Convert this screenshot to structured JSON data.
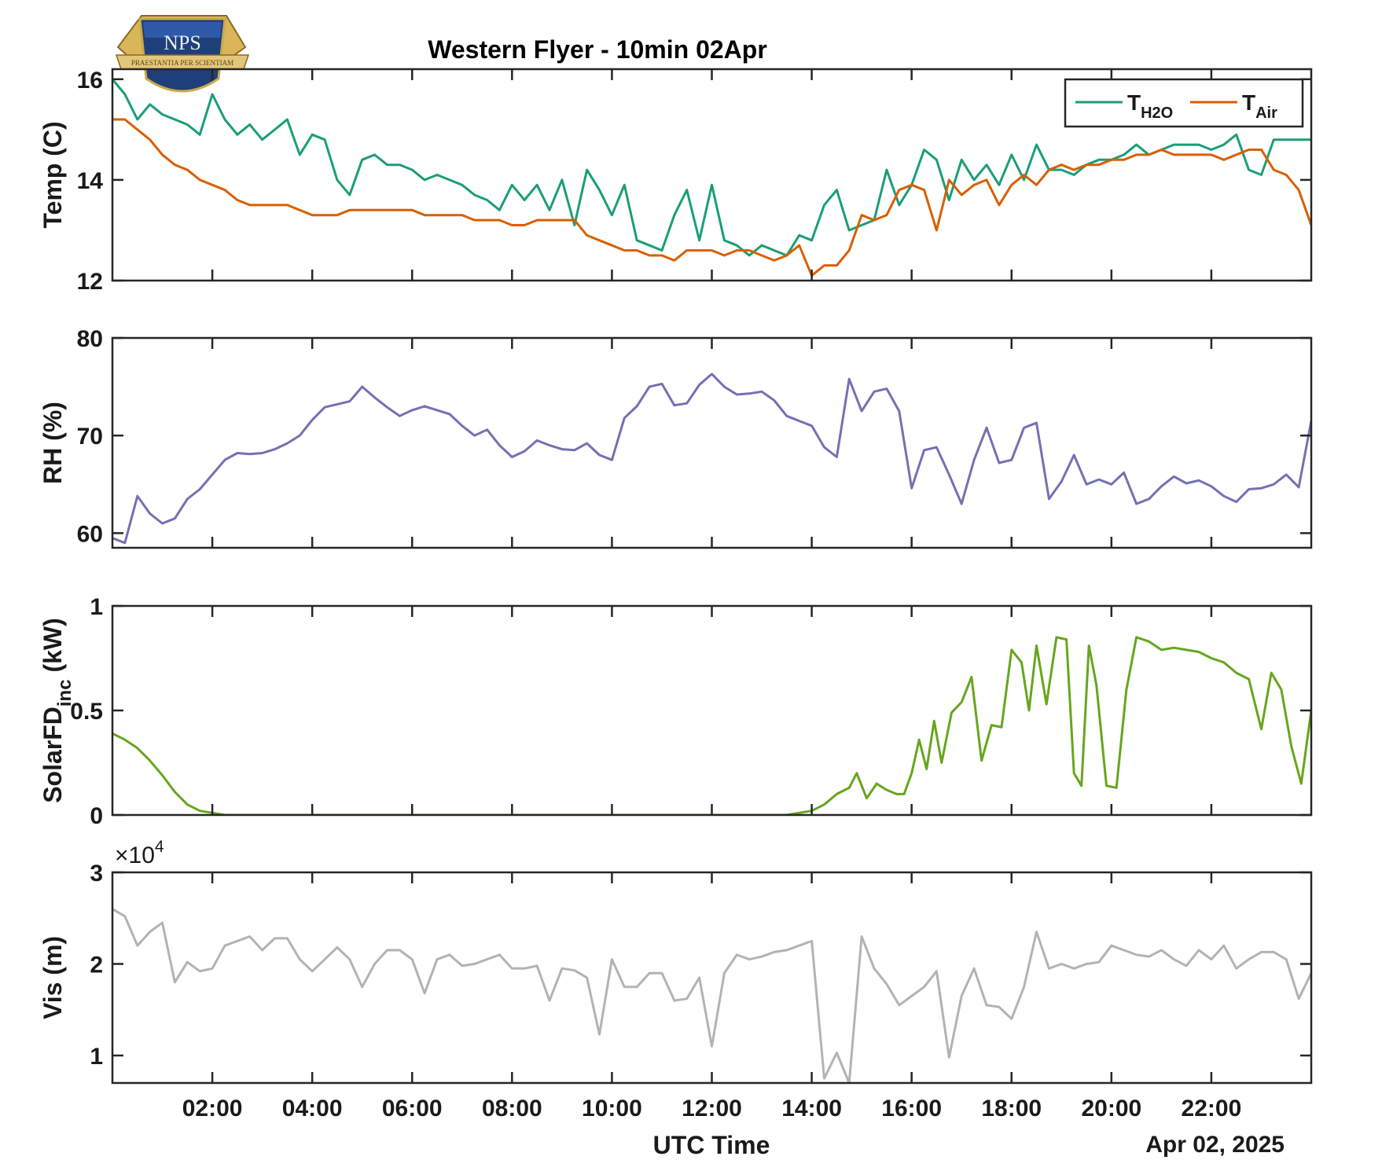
{
  "logo": {
    "text": "NPS",
    "motto": "PRAESTANTIA PER SCIENTIAM"
  },
  "title": "Western Flyer - 10min 02Apr",
  "xlabel": "UTC Time",
  "date_label": "Apr 02, 2025",
  "exponent_label": "×10",
  "exponent_power": "4",
  "colors": {
    "h2o": "#1b9e77",
    "air": "#d95f02",
    "rh": "#7570b3",
    "solar": "#66a61e",
    "vis": "#b3b3b3",
    "axis": "#262626"
  },
  "chart_data": [
    {
      "type": "line",
      "ylabel": "Temp (C)",
      "ylim": [
        12,
        16.2
      ],
      "yticks": [
        "12",
        "14",
        "16"
      ],
      "legend": {
        "placement": "top-right",
        "entries": [
          {
            "base": "T",
            "sub": "H2O"
          },
          {
            "base": "T",
            "sub": "Air"
          }
        ]
      },
      "x_hours": [
        0.0,
        0.25,
        0.5,
        0.75,
        1.0,
        1.25,
        1.5,
        1.75,
        2.0,
        2.25,
        2.5,
        2.75,
        3.0,
        3.25,
        3.5,
        3.75,
        4.0,
        4.25,
        4.5,
        4.75,
        5.0,
        5.25,
        5.5,
        5.75,
        6.0,
        6.25,
        6.5,
        6.75,
        7.0,
        7.25,
        7.5,
        7.75,
        8.0,
        8.25,
        8.5,
        8.75,
        9.0,
        9.25,
        9.5,
        9.75,
        10.0,
        10.25,
        10.5,
        10.75,
        11.0,
        11.25,
        11.5,
        11.75,
        12.0,
        12.25,
        12.5,
        12.75,
        13.0,
        13.25,
        13.5,
        13.75,
        14.0,
        14.25,
        14.5,
        14.75,
        15.0,
        15.25,
        15.5,
        15.75,
        16.0,
        16.25,
        16.5,
        16.75,
        17.0,
        17.25,
        17.5,
        17.75,
        18.0,
        18.25,
        18.5,
        18.75,
        19.0,
        19.25,
        19.5,
        19.75,
        20.0,
        20.25,
        20.5,
        20.75,
        21.0,
        21.25,
        21.5,
        21.75,
        22.0,
        22.25,
        22.5,
        22.75,
        23.0,
        23.25,
        23.5,
        23.75,
        24.0
      ],
      "series": [
        {
          "name": "H2O",
          "values": [
            16.0,
            15.7,
            15.2,
            15.5,
            15.3,
            15.2,
            15.1,
            14.9,
            15.7,
            15.2,
            14.9,
            15.1,
            14.8,
            15.0,
            15.2,
            14.5,
            14.9,
            14.8,
            14.0,
            13.7,
            14.4,
            14.5,
            14.3,
            14.3,
            14.2,
            14.0,
            14.1,
            14.0,
            13.9,
            13.7,
            13.6,
            13.4,
            13.9,
            13.6,
            13.9,
            13.4,
            14.0,
            13.1,
            14.2,
            13.8,
            13.3,
            13.9,
            12.8,
            12.7,
            12.6,
            13.3,
            13.8,
            12.8,
            13.9,
            12.8,
            12.7,
            12.5,
            12.7,
            12.6,
            12.5,
            12.9,
            12.8,
            13.5,
            13.8,
            13.0,
            13.1,
            13.2,
            14.2,
            13.5,
            13.9,
            14.6,
            14.4,
            13.6,
            14.4,
            14.0,
            14.3,
            13.9,
            14.5,
            14.0,
            14.7,
            14.2,
            14.2,
            14.1,
            14.3,
            14.4,
            14.4,
            14.5,
            14.7,
            14.5,
            14.6,
            14.7,
            14.7,
            14.7,
            14.6,
            14.7,
            14.9,
            14.2,
            14.1,
            14.8,
            14.8,
            14.8,
            14.8
          ]
        },
        {
          "name": "Air",
          "values": [
            15.2,
            15.2,
            15.0,
            14.8,
            14.5,
            14.3,
            14.2,
            14.0,
            13.9,
            13.8,
            13.6,
            13.5,
            13.5,
            13.5,
            13.5,
            13.4,
            13.3,
            13.3,
            13.3,
            13.4,
            13.4,
            13.4,
            13.4,
            13.4,
            13.4,
            13.3,
            13.3,
            13.3,
            13.3,
            13.2,
            13.2,
            13.2,
            13.1,
            13.1,
            13.2,
            13.2,
            13.2,
            13.2,
            12.9,
            12.8,
            12.7,
            12.6,
            12.6,
            12.5,
            12.5,
            12.4,
            12.6,
            12.6,
            12.6,
            12.5,
            12.6,
            12.6,
            12.5,
            12.4,
            12.5,
            12.7,
            12.1,
            12.3,
            12.3,
            12.6,
            13.3,
            13.2,
            13.3,
            13.8,
            13.9,
            13.8,
            13.0,
            14.0,
            13.7,
            13.9,
            14.0,
            13.5,
            13.9,
            14.1,
            13.9,
            14.2,
            14.3,
            14.2,
            14.3,
            14.3,
            14.4,
            14.4,
            14.5,
            14.5,
            14.6,
            14.5,
            14.5,
            14.5,
            14.5,
            14.4,
            14.5,
            14.6,
            14.6,
            14.2,
            14.1,
            13.8,
            13.1
          ]
        }
      ]
    },
    {
      "type": "line",
      "ylabel": "RH (%)",
      "ylim": [
        58.5,
        80
      ],
      "yticks": [
        "60",
        "70",
        "80"
      ],
      "x_hours": [
        0.0,
        0.25,
        0.5,
        0.75,
        1.0,
        1.25,
        1.5,
        1.75,
        2.0,
        2.25,
        2.5,
        2.75,
        3.0,
        3.25,
        3.5,
        3.75,
        4.0,
        4.25,
        4.5,
        4.75,
        5.0,
        5.25,
        5.5,
        5.75,
        6.0,
        6.25,
        6.5,
        6.75,
        7.0,
        7.25,
        7.5,
        7.75,
        8.0,
        8.25,
        8.5,
        8.75,
        9.0,
        9.25,
        9.5,
        9.75,
        10.0,
        10.25,
        10.5,
        10.75,
        11.0,
        11.25,
        11.5,
        11.75,
        12.0,
        12.25,
        12.5,
        12.75,
        13.0,
        13.25,
        13.5,
        13.75,
        14.0,
        14.25,
        14.5,
        14.75,
        15.0,
        15.25,
        15.5,
        15.75,
        16.0,
        16.25,
        16.5,
        16.75,
        17.0,
        17.25,
        17.5,
        17.75,
        18.0,
        18.25,
        18.5,
        18.75,
        19.0,
        19.25,
        19.5,
        19.75,
        20.0,
        20.25,
        20.5,
        20.75,
        21.0,
        21.25,
        21.5,
        21.75,
        22.0,
        22.25,
        22.5,
        22.75,
        23.0,
        23.25,
        23.5,
        23.75,
        24.0
      ],
      "series": [
        {
          "name": "",
          "values": [
            59.5,
            59.0,
            63.8,
            62.0,
            61.0,
            61.5,
            63.5,
            64.5,
            66.0,
            67.5,
            68.2,
            68.1,
            68.2,
            68.6,
            69.2,
            70.0,
            71.6,
            72.9,
            73.2,
            73.5,
            75.0,
            73.9,
            72.9,
            72.0,
            72.6,
            73.0,
            72.6,
            72.2,
            71.0,
            70.0,
            70.6,
            69.0,
            67.8,
            68.4,
            69.5,
            69.0,
            68.6,
            68.5,
            69.2,
            68.0,
            67.5,
            71.8,
            73.0,
            75.0,
            75.3,
            73.1,
            73.3,
            75.2,
            76.3,
            75.0,
            74.2,
            74.3,
            74.5,
            73.6,
            72.0,
            71.5,
            71.0,
            68.8,
            67.8,
            75.8,
            72.5,
            74.5,
            74.8,
            72.5,
            64.6,
            68.5,
            68.8,
            66.0,
            63.0,
            67.5,
            70.8,
            67.2,
            67.5,
            70.8,
            71.3,
            63.5,
            65.3,
            68.0,
            65.0,
            65.5,
            65.0,
            66.2,
            63.0,
            63.5,
            64.8,
            65.8,
            65.1,
            65.4,
            64.8,
            63.8,
            63.2,
            64.5,
            64.6,
            65.0,
            66.0,
            64.7,
            71.5
          ]
        }
      ]
    },
    {
      "type": "line",
      "ylabel": "SolarFD",
      "ylabel_sub": "inc",
      "ylabel_unit": " (kW)",
      "ylim": [
        0,
        1
      ],
      "yticks": [
        "0",
        "0.5",
        "1"
      ],
      "x_hours": [
        0.0,
        0.25,
        0.5,
        0.75,
        1.0,
        1.25,
        1.5,
        1.75,
        2.0,
        2.25,
        2.5,
        13.5,
        13.75,
        14.0,
        14.25,
        14.5,
        14.75,
        14.9,
        15.1,
        15.3,
        15.5,
        15.7,
        15.85,
        16.0,
        16.15,
        16.3,
        16.45,
        16.6,
        16.8,
        17.0,
        17.2,
        17.4,
        17.6,
        17.8,
        18.0,
        18.2,
        18.35,
        18.5,
        18.7,
        18.9,
        19.1,
        19.25,
        19.4,
        19.55,
        19.7,
        19.9,
        20.1,
        20.3,
        20.5,
        20.75,
        21.0,
        21.25,
        21.5,
        21.75,
        22.0,
        22.25,
        22.5,
        22.75,
        23.0,
        23.2,
        23.4,
        23.6,
        23.8,
        24.0
      ],
      "series": [
        {
          "name": "",
          "values": [
            0.39,
            0.36,
            0.32,
            0.26,
            0.19,
            0.11,
            0.05,
            0.02,
            0.01,
            0.0,
            0.0,
            0.0,
            0.01,
            0.02,
            0.05,
            0.1,
            0.13,
            0.2,
            0.08,
            0.15,
            0.12,
            0.1,
            0.1,
            0.2,
            0.36,
            0.22,
            0.45,
            0.25,
            0.49,
            0.54,
            0.66,
            0.26,
            0.43,
            0.42,
            0.79,
            0.73,
            0.5,
            0.81,
            0.53,
            0.85,
            0.84,
            0.2,
            0.14,
            0.81,
            0.62,
            0.14,
            0.13,
            0.6,
            0.85,
            0.83,
            0.79,
            0.8,
            0.79,
            0.78,
            0.75,
            0.73,
            0.68,
            0.65,
            0.41,
            0.68,
            0.6,
            0.33,
            0.15,
            0.5
          ]
        }
      ]
    },
    {
      "type": "line",
      "ylabel": "Vis (m)",
      "ylim": [
        7000,
        30000
      ],
      "yticks": [
        "1",
        "2",
        "3"
      ],
      "x_hours": [
        0.0,
        0.25,
        0.5,
        0.75,
        1.0,
        1.25,
        1.5,
        1.75,
        2.0,
        2.25,
        2.5,
        2.75,
        3.0,
        3.25,
        3.5,
        3.75,
        4.0,
        4.25,
        4.5,
        4.75,
        5.0,
        5.25,
        5.5,
        5.75,
        6.0,
        6.25,
        6.5,
        6.75,
        7.0,
        7.25,
        7.5,
        7.75,
        8.0,
        8.25,
        8.5,
        8.75,
        9.0,
        9.25,
        9.5,
        9.75,
        10.0,
        10.25,
        10.5,
        10.75,
        11.0,
        11.25,
        11.5,
        11.75,
        12.0,
        12.25,
        12.5,
        12.75,
        13.0,
        13.25,
        13.5,
        13.75,
        14.0,
        14.25,
        14.5,
        14.75,
        15.0,
        15.25,
        15.5,
        15.75,
        16.0,
        16.25,
        16.5,
        16.75,
        17.0,
        17.25,
        17.5,
        17.75,
        18.0,
        18.25,
        18.5,
        18.75,
        19.0,
        19.25,
        19.5,
        19.75,
        20.0,
        20.25,
        20.5,
        20.75,
        21.0,
        21.25,
        21.5,
        21.75,
        22.0,
        22.25,
        22.5,
        22.75,
        23.0,
        23.25,
        23.5,
        23.75,
        24.0
      ],
      "series": [
        {
          "name": "",
          "values": [
            26000,
            25200,
            22000,
            23500,
            24500,
            18000,
            20200,
            19200,
            19500,
            22000,
            22500,
            23000,
            21500,
            22800,
            22800,
            20500,
            19200,
            20500,
            21800,
            20500,
            17500,
            20000,
            21500,
            21500,
            20500,
            16800,
            20500,
            21000,
            19800,
            20000,
            20500,
            21000,
            19500,
            19500,
            19800,
            16000,
            19500,
            19300,
            18500,
            12300,
            20500,
            17500,
            17500,
            19000,
            19000,
            16000,
            16200,
            18500,
            11000,
            19000,
            21000,
            20500,
            20800,
            21300,
            21500,
            22000,
            22500,
            7500,
            10300,
            7000,
            23000,
            19500,
            17800,
            15500,
            16500,
            17500,
            19200,
            9800,
            16500,
            19500,
            15500,
            15300,
            14000,
            17500,
            23500,
            19500,
            20000,
            19500,
            20000,
            20200,
            22000,
            21500,
            21000,
            20800,
            21500,
            20500,
            19800,
            21500,
            20500,
            22000,
            19500,
            20500,
            21300,
            21300,
            20500,
            16200,
            19000
          ]
        }
      ]
    }
  ],
  "x_axis": {
    "range_hours": [
      0,
      24
    ],
    "tick_hours": [
      2,
      4,
      6,
      8,
      10,
      12,
      14,
      16,
      18,
      20,
      22
    ],
    "tick_labels": [
      "02:00",
      "04:00",
      "06:00",
      "08:00",
      "10:00",
      "12:00",
      "14:00",
      "16:00",
      "18:00",
      "20:00",
      "22:00"
    ]
  }
}
